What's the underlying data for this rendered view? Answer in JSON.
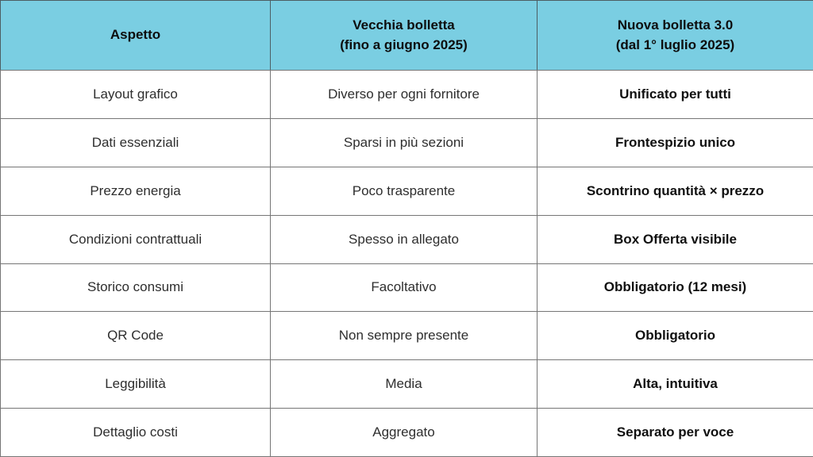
{
  "theme": {
    "header_bg": "#7ACEE2",
    "header_text": "#0d0d0d",
    "body_text": "#2e2e2e",
    "bold_text": "#101010",
    "border": "#767676",
    "page_bg": "#ffffff"
  },
  "table": {
    "columns": [
      {
        "line1": "Aspetto",
        "line2": ""
      },
      {
        "line1": "Vecchia bolletta",
        "line2": "(fino a giugno 2025)"
      },
      {
        "line1": "Nuova bolletta 3.0",
        "line2": "(dal 1° luglio 2025)"
      }
    ],
    "rows": [
      {
        "aspect": "Layout grafico",
        "old": "Diverso per ogni fornitore",
        "new": "Unificato per tutti"
      },
      {
        "aspect": "Dati essenziali",
        "old": "Sparsi in più sezioni",
        "new": "Frontespizio unico"
      },
      {
        "aspect": "Prezzo energia",
        "old": "Poco trasparente",
        "new": "Scontrino quantità × prezzo"
      },
      {
        "aspect": "Condizioni contrattuali",
        "old": "Spesso in allegato",
        "new": "Box Offerta visibile"
      },
      {
        "aspect": "Storico consumi",
        "old": "Facoltativo",
        "new": "Obbligatorio (12 mesi)"
      },
      {
        "aspect": "QR Code",
        "old": "Non sempre presente",
        "new": "Obbligatorio"
      },
      {
        "aspect": "Leggibilità",
        "old": "Media",
        "new": "Alta, intuitiva"
      },
      {
        "aspect": "Dettaglio costi",
        "old": "Aggregato",
        "new": "Separato per voce"
      }
    ]
  },
  "chart_data": {
    "type": "table",
    "title": "",
    "columns": [
      "Aspetto",
      "Vecchia bolletta (fino a giugno 2025)",
      "Nuova bolletta 3.0 (dal 1° luglio 2025)"
    ],
    "rows": [
      [
        "Layout grafico",
        "Diverso per ogni fornitore",
        "Unificato per tutti"
      ],
      [
        "Dati essenziali",
        "Sparsi in più sezioni",
        "Frontespizio unico"
      ],
      [
        "Prezzo energia",
        "Poco trasparente",
        "Scontrino quantità × prezzo"
      ],
      [
        "Condizioni contrattuali",
        "Spesso in allegato",
        "Box Offerta visibile"
      ],
      [
        "Storico consumi",
        "Facoltativo",
        "Obbligatorio (12 mesi)"
      ],
      [
        "QR Code",
        "Non sempre presente",
        "Obbligatorio"
      ],
      [
        "Leggibilità",
        "Media",
        "Alta, intuitiva"
      ],
      [
        "Dettaglio costi",
        "Aggregato",
        "Separato per voce"
      ]
    ],
    "layout": {
      "header_bg": "#7ACEE2",
      "grid": true,
      "bold_column_index": 2
    }
  }
}
